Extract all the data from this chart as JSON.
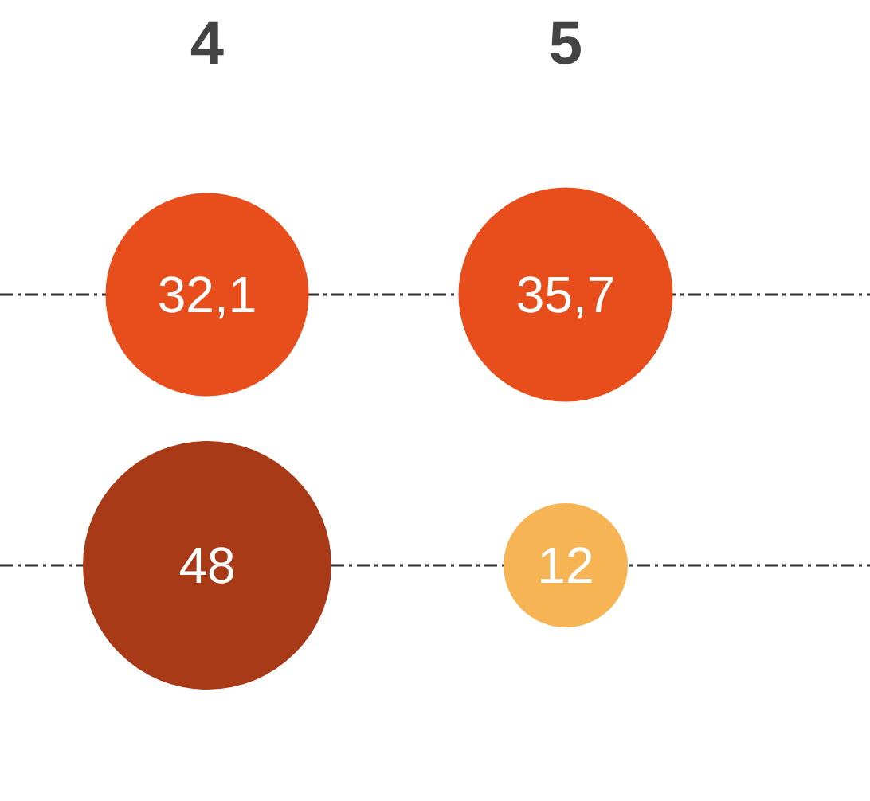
{
  "chart_data": {
    "type": "other",
    "categories": [
      "4",
      "5"
    ],
    "series": [
      {
        "colors": [
          "#e84e1b",
          "#e84e1b"
        ],
        "values": [
          32.1,
          35.7
        ],
        "value_labels": [
          "32,1",
          "35,7"
        ]
      },
      {
        "colors": [
          "#a93a17",
          "#f7b455"
        ],
        "values": [
          48,
          12
        ],
        "value_labels": [
          "48",
          "12"
        ]
      }
    ]
  }
}
